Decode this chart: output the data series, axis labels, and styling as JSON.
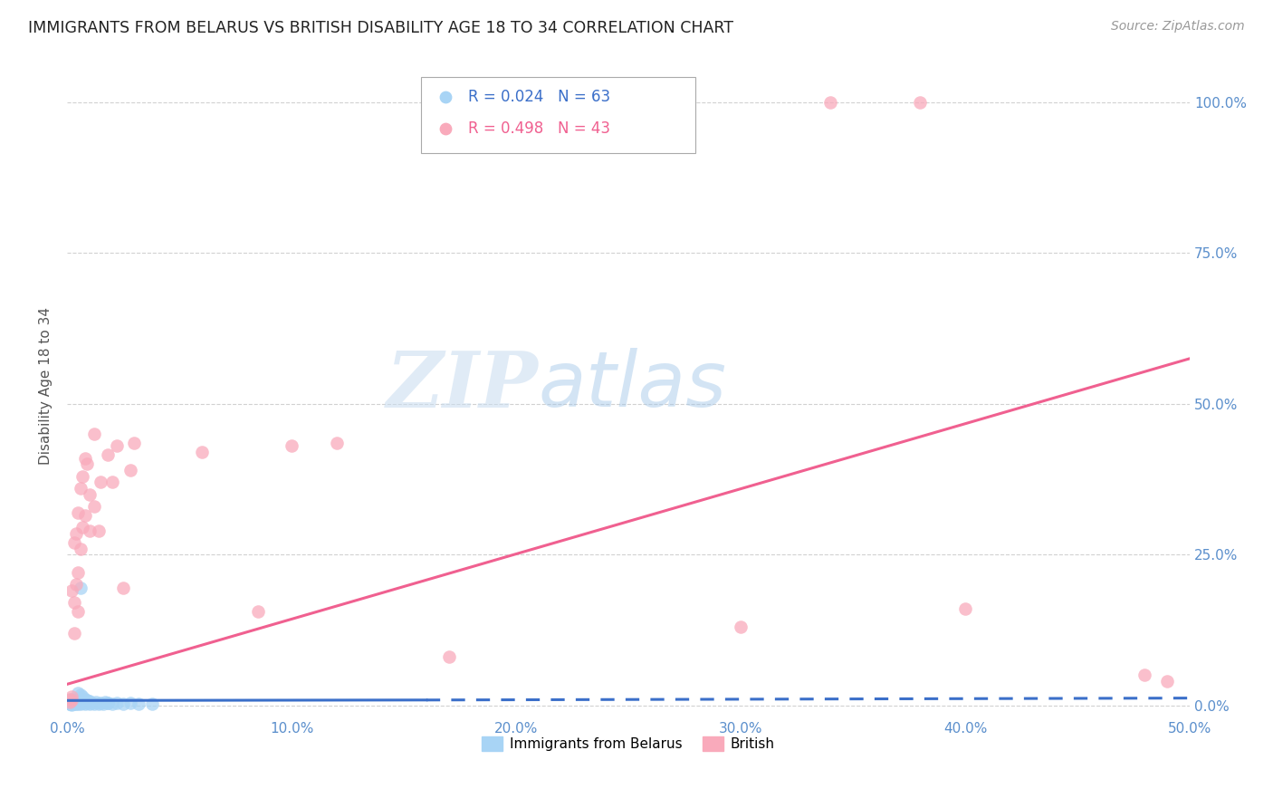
{
  "title": "IMMIGRANTS FROM BELARUS VS BRITISH DISABILITY AGE 18 TO 34 CORRELATION CHART",
  "source": "Source: ZipAtlas.com",
  "ylabel": "Disability Age 18 to 34",
  "xlim": [
    0.0,
    0.5
  ],
  "ylim": [
    -0.02,
    1.08
  ],
  "x_ticks": [
    0.0,
    0.1,
    0.2,
    0.3,
    0.4,
    0.5
  ],
  "x_tick_labels": [
    "0.0%",
    "10.0%",
    "20.0%",
    "30.0%",
    "40.0%",
    "50.0%"
  ],
  "y_ticks": [
    0.0,
    0.25,
    0.5,
    0.75,
    1.0
  ],
  "y_tick_labels": [
    "0.0%",
    "25.0%",
    "50.0%",
    "75.0%",
    "100.0%"
  ],
  "watermark_zip": "ZIP",
  "watermark_atlas": "atlas",
  "blue_color": "#A8D4F5",
  "pink_color": "#F9AABB",
  "blue_line_color": "#3B6FC9",
  "pink_line_color": "#F06090",
  "grid_color": "#CCCCCC",
  "blue_scatter": [
    [
      0.001,
      0.002
    ],
    [
      0.001,
      0.003
    ],
    [
      0.002,
      0.001
    ],
    [
      0.002,
      0.004
    ],
    [
      0.001,
      0.005
    ],
    [
      0.002,
      0.002
    ],
    [
      0.003,
      0.003
    ],
    [
      0.003,
      0.005
    ],
    [
      0.002,
      0.006
    ],
    [
      0.003,
      0.004
    ],
    [
      0.004,
      0.002
    ],
    [
      0.004,
      0.004
    ],
    [
      0.004,
      0.006
    ],
    [
      0.005,
      0.003
    ],
    [
      0.005,
      0.005
    ],
    [
      0.005,
      0.007
    ],
    [
      0.006,
      0.003
    ],
    [
      0.006,
      0.005
    ],
    [
      0.007,
      0.004
    ],
    [
      0.007,
      0.006
    ],
    [
      0.008,
      0.003
    ],
    [
      0.008,
      0.005
    ],
    [
      0.009,
      0.004
    ],
    [
      0.009,
      0.006
    ],
    [
      0.01,
      0.003
    ],
    [
      0.01,
      0.005
    ],
    [
      0.011,
      0.004
    ],
    [
      0.012,
      0.003
    ],
    [
      0.013,
      0.005
    ],
    [
      0.014,
      0.003
    ],
    [
      0.015,
      0.004
    ],
    [
      0.016,
      0.003
    ],
    [
      0.017,
      0.005
    ],
    [
      0.018,
      0.004
    ],
    [
      0.02,
      0.003
    ],
    [
      0.022,
      0.004
    ],
    [
      0.025,
      0.003
    ],
    [
      0.028,
      0.004
    ],
    [
      0.001,
      0.008
    ],
    [
      0.002,
      0.009
    ],
    [
      0.003,
      0.007
    ],
    [
      0.004,
      0.008
    ],
    [
      0.002,
      0.01
    ],
    [
      0.003,
      0.009
    ],
    [
      0.004,
      0.007
    ],
    [
      0.005,
      0.008
    ],
    [
      0.005,
      0.02
    ],
    [
      0.006,
      0.018
    ],
    [
      0.007,
      0.015
    ],
    [
      0.007,
      0.008
    ],
    [
      0.008,
      0.01
    ],
    [
      0.009,
      0.008
    ],
    [
      0.01,
      0.007
    ],
    [
      0.003,
      0.006
    ],
    [
      0.004,
      0.005
    ],
    [
      0.005,
      0.006
    ],
    [
      0.006,
      0.007
    ],
    [
      0.001,
      0.007
    ],
    [
      0.002,
      0.008
    ],
    [
      0.006,
      0.195
    ],
    [
      0.018,
      0.004
    ],
    [
      0.032,
      0.003
    ],
    [
      0.038,
      0.002
    ]
  ],
  "pink_scatter": [
    [
      0.001,
      0.005
    ],
    [
      0.001,
      0.01
    ],
    [
      0.002,
      0.008
    ],
    [
      0.002,
      0.015
    ],
    [
      0.002,
      0.19
    ],
    [
      0.003,
      0.12
    ],
    [
      0.003,
      0.27
    ],
    [
      0.003,
      0.17
    ],
    [
      0.004,
      0.2
    ],
    [
      0.004,
      0.285
    ],
    [
      0.005,
      0.22
    ],
    [
      0.005,
      0.155
    ],
    [
      0.005,
      0.32
    ],
    [
      0.006,
      0.26
    ],
    [
      0.006,
      0.36
    ],
    [
      0.007,
      0.295
    ],
    [
      0.007,
      0.38
    ],
    [
      0.008,
      0.315
    ],
    [
      0.008,
      0.41
    ],
    [
      0.009,
      0.4
    ],
    [
      0.01,
      0.35
    ],
    [
      0.01,
      0.29
    ],
    [
      0.012,
      0.45
    ],
    [
      0.012,
      0.33
    ],
    [
      0.014,
      0.29
    ],
    [
      0.015,
      0.37
    ],
    [
      0.018,
      0.415
    ],
    [
      0.02,
      0.37
    ],
    [
      0.022,
      0.43
    ],
    [
      0.025,
      0.195
    ],
    [
      0.028,
      0.39
    ],
    [
      0.03,
      0.435
    ],
    [
      0.06,
      0.42
    ],
    [
      0.085,
      0.155
    ],
    [
      0.1,
      0.43
    ],
    [
      0.12,
      0.435
    ],
    [
      0.17,
      0.08
    ],
    [
      0.3,
      0.13
    ],
    [
      0.34,
      1.0
    ],
    [
      0.38,
      1.0
    ],
    [
      0.4,
      0.16
    ],
    [
      0.48,
      0.05
    ],
    [
      0.49,
      0.04
    ]
  ],
  "blue_trend_x": [
    0.0,
    0.2,
    0.5
  ],
  "blue_trend_y": [
    0.008,
    0.009,
    0.012
  ],
  "blue_trend_solid_end": 0.16,
  "pink_trend_x": [
    0.0,
    0.5
  ],
  "pink_trend_y": [
    0.035,
    0.575
  ]
}
